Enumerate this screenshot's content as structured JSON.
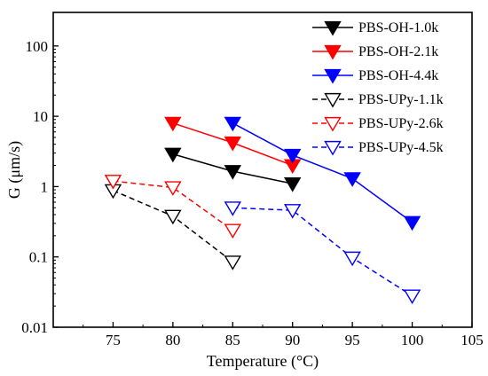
{
  "chart_data": {
    "type": "line",
    "xlabel": "Temperature (°C)",
    "ylabel": "G (μm/s)",
    "xlim": [
      70,
      105
    ],
    "ylim": [
      0.01,
      300
    ],
    "yscale": "log",
    "xticks": [
      75,
      80,
      85,
      90,
      95,
      100,
      105
    ],
    "xtick_labels": [
      "75",
      "80",
      "85",
      "90",
      "95",
      "100",
      "105"
    ],
    "yticks": [
      0.01,
      0.1,
      1,
      10,
      100
    ],
    "ytick_labels": [
      "0.01",
      "0.1",
      "1",
      "10",
      "100"
    ],
    "grid": false,
    "legend_position": "top-right",
    "series": [
      {
        "name": "PBS-OH-1.0k",
        "color": "#000000",
        "marker": "filled-triangle-down",
        "line": "solid",
        "x": [
          80,
          85,
          90
        ],
        "y": [
          2.9,
          1.65,
          1.1
        ]
      },
      {
        "name": "PBS-OH-2.1k",
        "color": "#ff0000",
        "marker": "filled-triangle-down",
        "line": "solid",
        "x": [
          80,
          85,
          90
        ],
        "y": [
          8.0,
          4.2,
          2.0
        ]
      },
      {
        "name": "PBS-OH-4.4k",
        "color": "#0000ff",
        "marker": "filled-triangle-down",
        "line": "solid",
        "x": [
          85,
          90,
          95,
          100
        ],
        "y": [
          8.0,
          2.8,
          1.3,
          0.31
        ]
      },
      {
        "name": "PBS-UPy-1.1k",
        "color": "#000000",
        "marker": "open-triangle-down",
        "line": "dashed",
        "x": [
          75,
          80,
          85
        ],
        "y": [
          0.88,
          0.38,
          0.085
        ]
      },
      {
        "name": "PBS-UPy-2.6k",
        "color": "#ff0000",
        "marker": "open-triangle-down",
        "line": "dashed",
        "x": [
          75,
          80,
          85
        ],
        "y": [
          1.2,
          0.97,
          0.24
        ]
      },
      {
        "name": "PBS-UPy-4.5k",
        "color": "#0000ff",
        "marker": "open-triangle-down",
        "line": "dashed",
        "x": [
          85,
          90,
          95,
          100
        ],
        "y": [
          0.5,
          0.46,
          0.097,
          0.028
        ]
      }
    ]
  }
}
